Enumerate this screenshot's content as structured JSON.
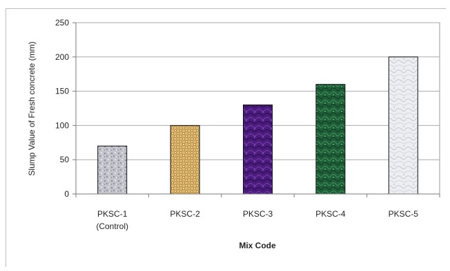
{
  "chart_data": {
    "type": "bar",
    "categories": [
      [
        "PKSC-1",
        "(Control)"
      ],
      [
        "PKSC-2"
      ],
      [
        "PKSC-3"
      ],
      [
        "PKSC-4"
      ],
      [
        "PKSC-5"
      ]
    ],
    "values": [
      70,
      100,
      130,
      160,
      200
    ],
    "xlabel": "Mix Code",
    "ylabel": "Slump Value of Fresh concrete (mm)",
    "ylim": [
      0,
      250
    ],
    "yticks": [
      0,
      50,
      100,
      150,
      200,
      250
    ],
    "grid": true,
    "legend": "none",
    "bar_patterns": [
      "gravel-grey",
      "woven-tan",
      "purple-marble",
      "green-marble",
      "white-marble"
    ],
    "colors": {
      "bar_fills": [
        "#b9b9c1",
        "#c9a55a",
        "#4a1a7a",
        "#1d5a36",
        "#e6e8ec"
      ],
      "gridline": "#a8a8a8",
      "axis": "#7a7a7a"
    }
  }
}
